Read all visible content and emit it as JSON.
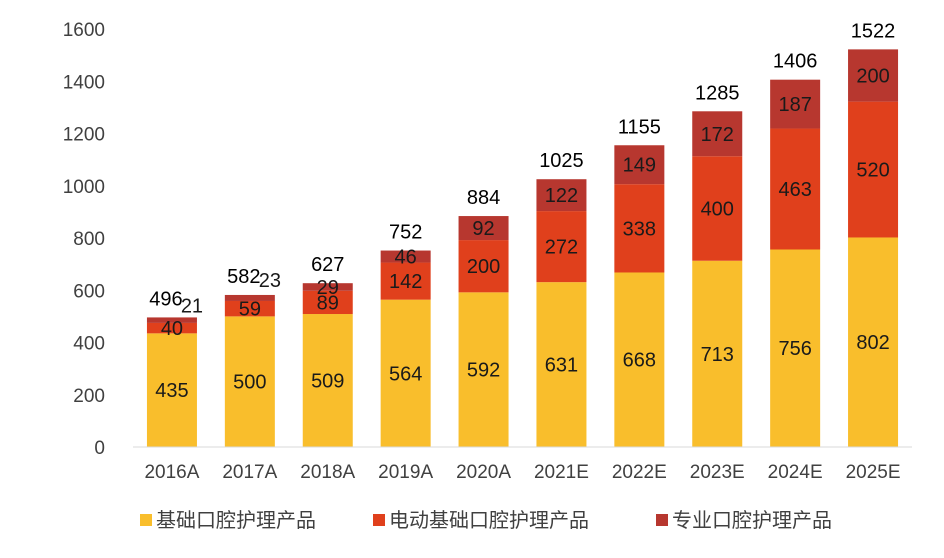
{
  "chart_data": {
    "type": "bar",
    "stacked": true,
    "categories": [
      "2016A",
      "2017A",
      "2018A",
      "2019A",
      "2020A",
      "2021E",
      "2022E",
      "2023E",
      "2024E",
      "2025E"
    ],
    "series": [
      {
        "name": "基础口腔护理产品",
        "color": "#F9BE2C",
        "values": [
          435,
          500,
          509,
          564,
          592,
          631,
          668,
          713,
          756,
          802
        ]
      },
      {
        "name": "电动基础口腔护理产品",
        "color": "#E0401C",
        "values": [
          40,
          59,
          89,
          142,
          200,
          272,
          338,
          400,
          463,
          520
        ]
      },
      {
        "name": "专业口腔护理产品",
        "color": "#B7372F",
        "values": [
          21,
          23,
          29,
          46,
          92,
          122,
          149,
          172,
          187,
          200
        ]
      }
    ],
    "totals": [
      496,
      582,
      627,
      752,
      884,
      1025,
      1155,
      1285,
      1406,
      1522
    ],
    "yticks": [
      0,
      200,
      400,
      600,
      800,
      1000,
      1200,
      1400,
      1600
    ],
    "ylim": [
      0,
      1600
    ],
    "legend_position": "bottom",
    "grid": false
  }
}
